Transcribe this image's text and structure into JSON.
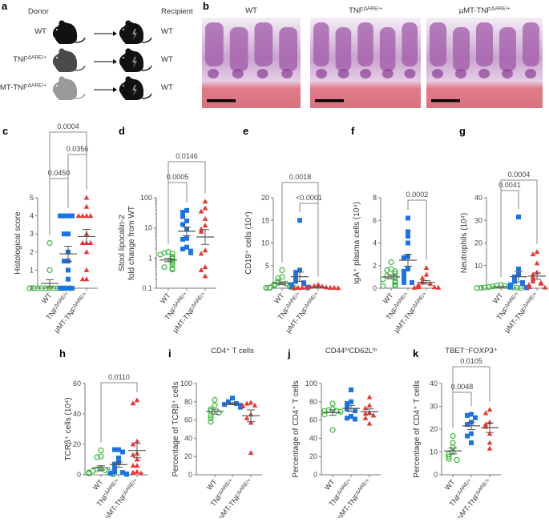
{
  "panel_letters": {
    "a": "a",
    "b": "b",
    "c": "c",
    "d": "d",
    "e": "e",
    "f": "f",
    "g": "g",
    "h": "h",
    "i": "i",
    "j": "j",
    "k": "k"
  },
  "groups": [
    {
      "base": "WT",
      "sup": "",
      "color": "#3cb83c",
      "marker": "open-circle"
    },
    {
      "base": "TNF",
      "sup": "ΔARE/+",
      "color": "#1a74e6",
      "marker": "square"
    },
    {
      "base": "µMT-TNF",
      "sup": "ΔARE/+",
      "color": "#ee3430",
      "marker": "triangle"
    }
  ],
  "panel_a": {
    "donor_label": "Donor",
    "recipient_label": "Recipient",
    "rows": [
      {
        "donor": {
          "base": "WT",
          "sup": ""
        },
        "donor_color": "#111111",
        "recipient": "WT"
      },
      {
        "donor": {
          "base": "TNF",
          "sup": "ΔARE/+"
        },
        "donor_color": "#4a4a4a",
        "recipient": "WT"
      },
      {
        "donor": {
          "base": "µMT-TNF",
          "sup": "ΔARE/+"
        },
        "donor_color": "#9a9a9a",
        "recipient": "WT"
      }
    ],
    "icons": {
      "mouse": "mouse-icon",
      "arrow": "arrow-right-icon",
      "lightning": "lightning-icon"
    }
  },
  "panel_b": {
    "images": [
      {
        "label": {
          "base": "WT",
          "sup": ""
        }
      },
      {
        "label": {
          "base": "TNF",
          "sup": "ΔARE/+"
        }
      },
      {
        "label": {
          "base": "µMT-TNF",
          "sup": "ΔARE/+"
        }
      }
    ]
  },
  "chart_data": [
    {
      "panel": "c",
      "type": "scatter",
      "title": "",
      "ylabel": [
        "Histological score"
      ],
      "scale": "linear",
      "ylim": [
        0,
        5
      ],
      "yticks": [
        0,
        1,
        2,
        3,
        4,
        5
      ],
      "yticklabels": [
        "0",
        "1",
        "2",
        "3",
        "4",
        "5"
      ],
      "series": [
        {
          "name": "WT",
          "values": [
            2.5,
            1,
            0,
            0,
            0,
            0,
            0,
            0,
            0,
            0,
            0,
            0,
            0
          ]
        },
        {
          "name": "TNFΔARE/+",
          "values": [
            4,
            4,
            4,
            4,
            3,
            3,
            2,
            1.5,
            1.5,
            1,
            0.5,
            0,
            0,
            0,
            0
          ]
        },
        {
          "name": "µMT-TNFΔARE/+",
          "values": [
            5,
            4.5,
            4,
            4,
            4,
            4,
            3,
            2.5,
            2.5,
            2.5,
            2,
            1,
            0.5,
            0.5
          ]
        }
      ],
      "comparisons": [
        {
          "groups": [
            0,
            1
          ],
          "p": "0.0450"
        },
        {
          "groups": [
            1,
            2
          ],
          "p": "0.0356"
        },
        {
          "groups": [
            0,
            2
          ],
          "p": "0.0004"
        }
      ]
    },
    {
      "panel": "d",
      "type": "scatter",
      "title": "",
      "ylabel": [
        "Stool lipocalin-2",
        "fold change from WT"
      ],
      "scale": "log",
      "ylim": [
        0.1,
        100
      ],
      "yticks": [
        0.1,
        1,
        10,
        100
      ],
      "yticklabels": [
        "0.1",
        "1",
        "10",
        "100"
      ],
      "series": [
        {
          "name": "WT",
          "values": [
            1.6,
            1.5,
            1.4,
            1.3,
            1.1,
            1.0,
            0.95,
            0.8,
            0.7,
            0.6,
            0.5,
            0.45,
            0.42
          ]
        },
        {
          "name": "TNFΔARE/+",
          "values": [
            38,
            33,
            26,
            24,
            17,
            13,
            9,
            4.5,
            4.2,
            2.3,
            2.0,
            1.7,
            1.5
          ]
        },
        {
          "name": "µMT-TNFΔARE/+",
          "values": [
            75,
            45,
            35,
            20,
            12,
            9,
            7.5,
            1.8,
            1.4,
            0.5,
            0.4,
            0.25
          ]
        }
      ],
      "comparisons": [
        {
          "groups": [
            0,
            1
          ],
          "p": "0.0005"
        },
        {
          "groups": [
            0,
            2
          ],
          "p": "0.0146"
        }
      ]
    },
    {
      "panel": "e",
      "type": "scatter",
      "title": "",
      "ylabel": [
        "CD19⁺ cells (10⁴)"
      ],
      "scale": "linear",
      "ylim": [
        0,
        20
      ],
      "yticks": [
        0,
        5,
        10,
        15,
        20
      ],
      "yticklabels": [
        "0",
        "5",
        "10",
        "15",
        "20"
      ],
      "series": [
        {
          "name": "WT",
          "values": [
            4,
            2.5,
            2.2,
            1.5,
            1.2,
            1,
            0.8,
            0.6,
            0.5,
            0.3,
            0.2,
            0.1,
            0.1,
            0.1
          ]
        },
        {
          "name": "TNFΔARE/+",
          "values": [
            15,
            4,
            3.5,
            3,
            2.5,
            2,
            1.5,
            1.2,
            1,
            0.8,
            0.5,
            0.3,
            0.2,
            0.1
          ]
        },
        {
          "name": "µMT-TNFΔARE/+",
          "values": [
            0.8,
            0.5,
            0.4,
            0.3,
            0.2,
            0.2,
            0.1,
            0.1,
            0.1,
            0.1,
            0.05,
            0.05
          ]
        }
      ],
      "comparisons": [
        {
          "groups": [
            0,
            2
          ],
          "p": "0.0018"
        },
        {
          "groups": [
            1,
            2
          ],
          "p": "<0.0001"
        }
      ]
    },
    {
      "panel": "f",
      "type": "scatter",
      "title": "",
      "ylabel": [
        "IgA⁺ plasma cells (10⁴)"
      ],
      "scale": "linear",
      "ylim": [
        0,
        8
      ],
      "yticks": [
        0,
        2,
        4,
        6,
        8
      ],
      "yticklabels": [
        "0",
        "2",
        "4",
        "6",
        "8"
      ],
      "series": [
        {
          "name": "WT",
          "values": [
            2.3,
            1.7,
            1.6,
            1.5,
            1.3,
            1.1,
            1.0,
            0.9,
            0.8,
            0.6,
            0.5,
            0.3,
            0.2,
            0.2
          ]
        },
        {
          "name": "TNFΔARE/+",
          "values": [
            6.2,
            5,
            4.6,
            4,
            2.8,
            2.7,
            1.7,
            1.5,
            1.2,
            0.9,
            0.6,
            0.5,
            0.5
          ]
        },
        {
          "name": "µMT-TNFΔARE/+",
          "values": [
            1.8,
            1.2,
            0.9,
            0.6,
            0.5,
            0.4,
            0.3,
            0.2,
            0.1,
            0.1,
            0.05,
            0.05
          ]
        }
      ],
      "comparisons": [
        {
          "groups": [
            1,
            2
          ],
          "p": "0.0002"
        }
      ]
    },
    {
      "panel": "g",
      "type": "scatter",
      "title": "",
      "ylabel": [
        "Neutrophils (10⁴)"
      ],
      "scale": "linear",
      "ylim": [
        0,
        40
      ],
      "yticks": [
        0,
        10,
        20,
        30,
        40
      ],
      "yticklabels": [
        "0",
        "10",
        "20",
        "30",
        "40"
      ],
      "series": [
        {
          "name": "WT",
          "values": [
            1.5,
            1.2,
            1,
            0.8,
            0.6,
            0.5,
            0.4,
            0.3,
            0.2,
            0.2,
            0.1,
            0.1
          ]
        },
        {
          "name": "TNFΔARE/+",
          "values": [
            31.5,
            8.5,
            6,
            5,
            4,
            3,
            2.5,
            2,
            1.5,
            1,
            0.5,
            0.3,
            0.2
          ]
        },
        {
          "name": "µMT-TNFΔARE/+",
          "values": [
            16,
            15,
            11,
            7,
            6,
            5,
            4,
            3,
            2.5,
            2,
            1.5,
            1,
            0.5,
            0.3
          ]
        }
      ],
      "comparisons": [
        {
          "groups": [
            0,
            1
          ],
          "p": "0.0041"
        },
        {
          "groups": [
            0,
            2
          ],
          "p": "0.0004"
        }
      ]
    },
    {
      "panel": "h",
      "type": "scatter",
      "title": "",
      "ylabel": [
        "TCRβ⁺ cells (10⁴)"
      ],
      "scale": "linear",
      "ylim": [
        0,
        60
      ],
      "yticks": [
        0,
        20,
        40,
        60
      ],
      "yticklabels": [
        "0",
        "20",
        "40",
        "60"
      ],
      "series": [
        {
          "name": "WT",
          "values": [
            16,
            12,
            11.5,
            4,
            3.5,
            3,
            2.5,
            2,
            1.5,
            1,
            0.8,
            0.5,
            0.3
          ]
        },
        {
          "name": "TNFΔARE/+",
          "values": [
            16.5,
            16.5,
            15,
            11,
            8,
            7,
            5,
            3,
            2,
            1.5,
            1,
            0.5,
            0.3
          ]
        },
        {
          "name": "µMT-TNFΔARE/+",
          "values": [
            49,
            47,
            22,
            20,
            14,
            13,
            10,
            6,
            6,
            2,
            1.5,
            1
          ]
        }
      ],
      "comparisons": [
        {
          "groups": [
            0,
            2
          ],
          "p": "0.0110"
        }
      ]
    },
    {
      "panel": "i",
      "type": "scatter",
      "title": "CD4⁺ T cells",
      "ylabel": [
        "Percentage of TCRβ⁺ cells"
      ],
      "scale": "linear",
      "ylim": [
        0,
        100
      ],
      "yticks": [
        0,
        20,
        40,
        60,
        80,
        100
      ],
      "yticklabels": [
        "0",
        "20",
        "40",
        "60",
        "80",
        "100"
      ],
      "series": [
        {
          "name": "WT",
          "values": [
            82,
            76,
            72,
            70,
            68,
            65,
            62,
            58
          ]
        },
        {
          "name": "TNFΔARE/+",
          "values": [
            84,
            80,
            79,
            78,
            77,
            76,
            75,
            74
          ]
        },
        {
          "name": "µMT-TNFΔARE/+",
          "values": [
            79,
            78,
            76,
            75,
            66,
            62,
            57,
            24
          ]
        }
      ],
      "comparisons": []
    },
    {
      "panel": "j",
      "type": "scatter",
      "title": "CD44ʰⁱCD62Lˡᵒ",
      "ylabel": [
        "Percentage of CD4⁺ T cells"
      ],
      "scale": "linear",
      "ylim": [
        0,
        100
      ],
      "yticks": [
        0,
        20,
        40,
        60,
        80,
        100
      ],
      "yticklabels": [
        "0",
        "20",
        "40",
        "60",
        "80",
        "100"
      ],
      "series": [
        {
          "name": "WT",
          "values": [
            78,
            72,
            71,
            70,
            70,
            69,
            66,
            49
          ]
        },
        {
          "name": "TNFΔARE/+",
          "values": [
            93,
            80,
            78,
            74,
            72,
            70,
            64,
            62,
            61
          ]
        },
        {
          "name": "µMT-TNFΔARE/+",
          "values": [
            85,
            76,
            73,
            68,
            67,
            65,
            62,
            56
          ]
        }
      ],
      "comparisons": []
    },
    {
      "panel": "k",
      "type": "scatter",
      "title": "TBET⁻FOXP3⁺",
      "ylabel": [
        "Percentage of CD4⁺ T cells"
      ],
      "scale": "linear",
      "ylim": [
        0,
        40
      ],
      "yticks": [
        0,
        10,
        20,
        30,
        40
      ],
      "yticklabels": [
        "0",
        "10",
        "20",
        "30",
        "40"
      ],
      "series": [
        {
          "name": "WT",
          "values": [
            17,
            14,
            12,
            10,
            9,
            8,
            7,
            6.5
          ]
        },
        {
          "name": "TNFΔARE/+",
          "values": [
            26.5,
            26,
            25,
            23,
            22,
            18,
            17,
            14
          ]
        },
        {
          "name": "µMT-TNFΔARE/+",
          "values": [
            28.5,
            27,
            23,
            22,
            21,
            18,
            14,
            11.5
          ]
        }
      ],
      "comparisons": [
        {
          "groups": [
            0,
            1
          ],
          "p": "0.0048"
        },
        {
          "groups": [
            0,
            2
          ],
          "p": "0.0105"
        }
      ]
    }
  ]
}
